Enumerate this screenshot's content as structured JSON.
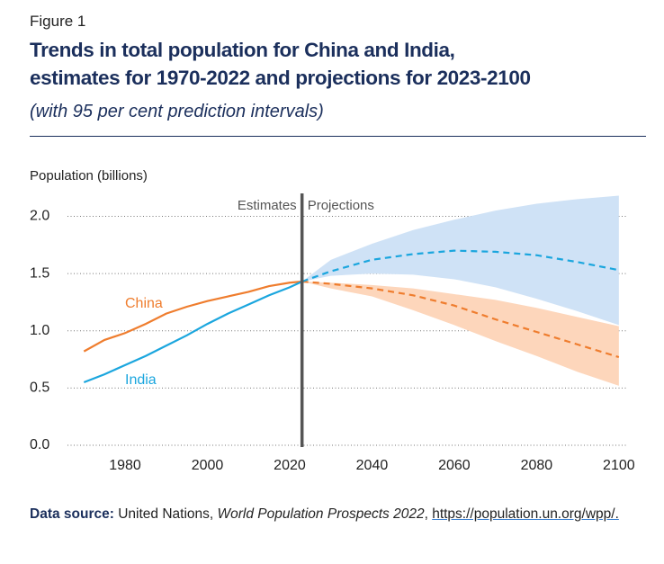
{
  "figure_label": "Figure 1",
  "chart_data": {
    "type": "line",
    "title": [
      "Trends in total population for China and India,",
      "estimates for 1970-2022 and projections for 2023-2100"
    ],
    "subtitle": "(with 95 per cent prediction intervals)",
    "y_label": "Population (billions)",
    "xlim": [
      1966,
      2102
    ],
    "xticks": [
      1980,
      2000,
      2020,
      2040,
      2060,
      2080,
      2100
    ],
    "ylim": [
      0,
      2.2
    ],
    "yticks": [
      {
        "value": 0,
        "label": "0.0"
      },
      0.5,
      {
        "value": 1,
        "label": "1.0"
      },
      1.5,
      {
        "value": 2,
        "label": "2.0"
      }
    ],
    "grid": true,
    "divider_x": 2023,
    "divider_labels": [
      "Estimates",
      "Projections"
    ],
    "series": [
      {
        "name": "China",
        "color": "#ef7d2e",
        "band_color": "#fdd6bb",
        "x": [
          1970,
          1975,
          1980,
          1985,
          1990,
          1995,
          2000,
          2005,
          2010,
          2015,
          2020,
          2023
        ],
        "values": [
          0.82,
          0.92,
          0.98,
          1.06,
          1.15,
          1.21,
          1.26,
          1.3,
          1.34,
          1.39,
          1.42,
          1.43
        ],
        "projection": {
          "x": [
            2023,
            2030,
            2040,
            2050,
            2060,
            2070,
            2080,
            2090,
            2100
          ],
          "values": [
            1.43,
            1.41,
            1.37,
            1.31,
            1.22,
            1.1,
            0.99,
            0.88,
            0.77
          ],
          "lower": [
            1.43,
            1.37,
            1.3,
            1.18,
            1.05,
            0.91,
            0.78,
            0.64,
            0.52
          ],
          "upper": [
            1.43,
            1.42,
            1.4,
            1.37,
            1.32,
            1.27,
            1.2,
            1.12,
            1.04
          ]
        }
      },
      {
        "name": "India",
        "color": "#1ba6de",
        "band_color": "#cfe2f6",
        "x": [
          1970,
          1975,
          1980,
          1985,
          1990,
          1995,
          2000,
          2005,
          2010,
          2015,
          2020,
          2023
        ],
        "values": [
          0.55,
          0.62,
          0.7,
          0.78,
          0.87,
          0.96,
          1.06,
          1.15,
          1.23,
          1.31,
          1.38,
          1.43
        ],
        "projection": {
          "x": [
            2023,
            2030,
            2040,
            2050,
            2060,
            2070,
            2080,
            2090,
            2100
          ],
          "values": [
            1.43,
            1.52,
            1.62,
            1.67,
            1.7,
            1.69,
            1.66,
            1.6,
            1.53
          ],
          "lower": [
            1.43,
            1.48,
            1.5,
            1.49,
            1.45,
            1.38,
            1.28,
            1.17,
            1.05
          ],
          "upper": [
            1.43,
            1.62,
            1.76,
            1.88,
            1.97,
            2.05,
            2.11,
            2.15,
            2.18
          ]
        }
      }
    ]
  },
  "source": {
    "label": "Data source:",
    "org": "United Nations,",
    "publication": "World Population Prospects 2022",
    "separator": ",",
    "url": "https://population.un.org/wpp/."
  }
}
